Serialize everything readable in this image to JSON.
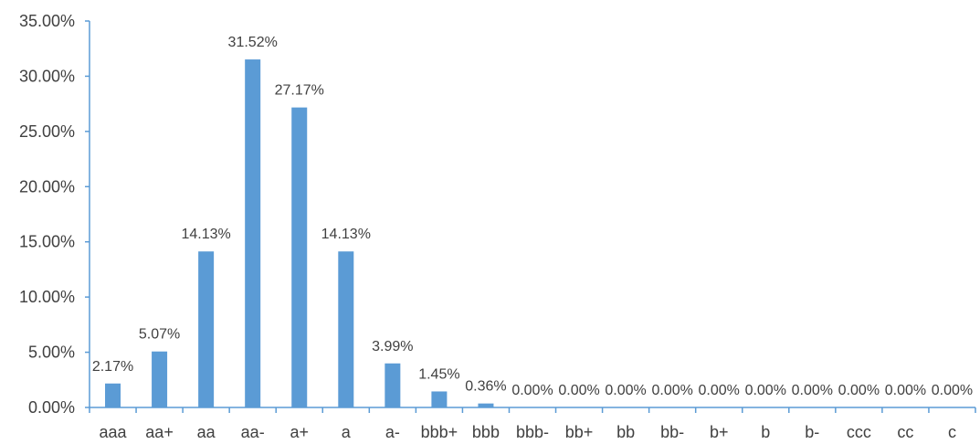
{
  "chart_data": {
    "type": "bar",
    "categories": [
      "aaa",
      "aa+",
      "aa",
      "aa-",
      "a+",
      "a",
      "a-",
      "bbb+",
      "bbb",
      "bbb-",
      "bb+",
      "bb",
      "bb-",
      "b+",
      "b",
      "b-",
      "ccc",
      "cc",
      "c"
    ],
    "values": [
      2.17,
      5.07,
      14.13,
      31.52,
      27.17,
      14.13,
      3.99,
      1.45,
      0.36,
      0.0,
      0.0,
      0.0,
      0.0,
      0.0,
      0.0,
      0.0,
      0.0,
      0.0,
      0.0
    ],
    "data_labels": [
      "2.17%",
      "5.07%",
      "14.13%",
      "31.52%",
      "27.17%",
      "14.13%",
      "3.99%",
      "1.45%",
      "0.36%",
      "0.00%",
      "0.00%",
      "0.00%",
      "0.00%",
      "0.00%",
      "0.00%",
      "0.00%",
      "0.00%",
      "0.00%",
      "0.00%"
    ],
    "y_ticks": [
      "0.00%",
      "5.00%",
      "10.00%",
      "15.00%",
      "20.00%",
      "25.00%",
      "30.00%",
      "35.00%"
    ],
    "ylim": [
      0,
      35
    ],
    "title": "",
    "xlabel": "",
    "ylabel": "",
    "grid": false,
    "legend": "none",
    "colors": {
      "bar": "#5B9BD5",
      "axis": "#5B9BD5",
      "text": "#404040"
    }
  }
}
